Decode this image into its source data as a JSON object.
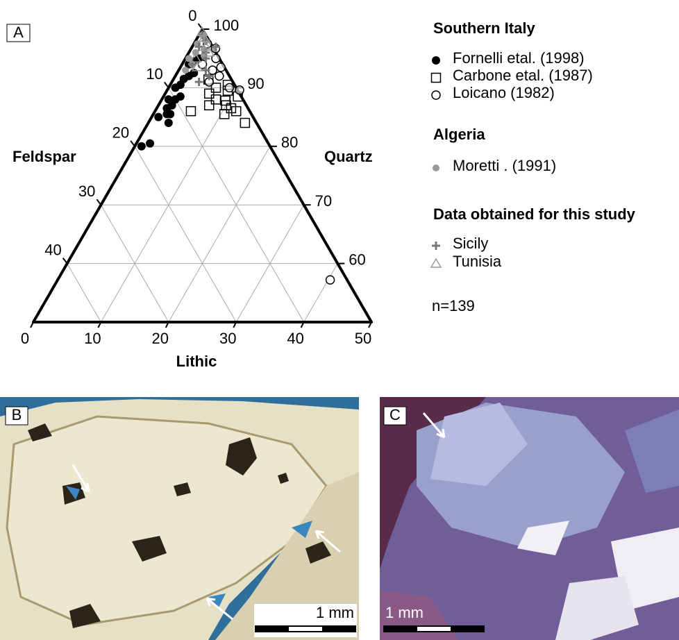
{
  "chart_data": {
    "type": "ternary",
    "panel_label": "A",
    "axes": {
      "feldspar": {
        "title": "Feldspar",
        "lim": [
          0,
          50
        ],
        "ticks": [
          0,
          10,
          20,
          30,
          40
        ]
      },
      "quartz": {
        "title": "Quartz",
        "lim": [
          50,
          100
        ],
        "ticks": [
          100,
          90,
          80,
          70,
          60
        ]
      },
      "lithic": {
        "title": "Lithic",
        "lim": [
          0,
          50
        ],
        "ticks": [
          0,
          10,
          20,
          30,
          40,
          50
        ]
      }
    },
    "grid": true,
    "groups": [
      {
        "title": "Southern Italy",
        "series": [
          {
            "name": "Fornelli etal. (1998)",
            "marker": "filled-circle",
            "color": "#000000",
            "quartz": [
              80,
              80.5,
              85,
              85.5,
              86.5,
              88,
              87,
              88,
              90,
              90.5,
              91.5,
              92,
              94,
              94.5,
              95,
              92.5,
              88.5,
              85.5,
              84
            ],
            "lithic": [
              1,
              2,
              1,
              2,
              1.5,
              1,
              2,
              2,
              1,
              1.5,
              1.5,
              2,
              1,
              1.5,
              2,
              2.5,
              2.5,
              2.5,
              3
            ]
          },
          {
            "name": "Carbone etal. (1987)",
            "marker": "open-square",
            "color": "#000000",
            "quartz": [
              86,
              84,
              91.4,
              87.8,
              88,
              89,
              90,
              87,
              86.5,
              88.5,
              86,
              89.5,
              90.5,
              87,
              85.5
            ],
            "lithic": [
              5.3,
              14.3,
              5.2,
              9.5,
              8,
              6.5,
              7,
              7.5,
              11,
              11,
              12,
              9,
              8.5,
              10,
              10.5
            ]
          },
          {
            "name": "Loicano (1982)",
            "marker": "open-circle",
            "color": "#000000",
            "quartz": [
              96.7,
              95,
              93,
              92,
              89.6,
              57.2,
              94,
              91,
              97.5,
              90,
              93.5
            ],
            "lithic": [
              3.6,
              4.5,
              5,
              6.5,
              10.7,
              40.3,
              3,
              5.5,
              2,
              9,
              6
            ]
          }
        ]
      },
      {
        "title": "Algeria",
        "series": [
          {
            "name": "Moretti . (1991)",
            "marker": "filled-circle",
            "color": "#999999",
            "quartz": [
              99,
              97.5,
              96,
              95,
              94,
              96.5,
              98,
              93,
              95.5
            ],
            "lithic": [
              0.5,
              0.5,
              1,
              0.5,
              1.5,
              2,
              1.5,
              1,
              2.5
            ]
          }
        ]
      },
      {
        "title": "Data obtained for this study",
        "series": [
          {
            "name": "Sicily",
            "marker": "plus",
            "color": "#777777",
            "quartz": [
              99,
              98,
              97,
              96,
              95,
              93,
              92,
              97,
              94,
              91
            ],
            "lithic": [
              0.5,
              1.5,
              1,
              2.5,
              3,
              4,
              5,
              3.5,
              1.5,
              4
            ]
          },
          {
            "name": "Tunisia",
            "marker": "open-triangle",
            "color": "#999999",
            "quartz": [
              99.5,
              98.5,
              97,
              95,
              96,
              93.5
            ],
            "lithic": [
              0.2,
              1,
              2,
              1.5,
              3,
              2.5
            ]
          }
        ]
      }
    ],
    "annotation": "n=139"
  },
  "photos": [
    {
      "label": "B",
      "scale_bar": "1 mm"
    },
    {
      "label": "C",
      "scale_bar": "1 mm"
    }
  ]
}
